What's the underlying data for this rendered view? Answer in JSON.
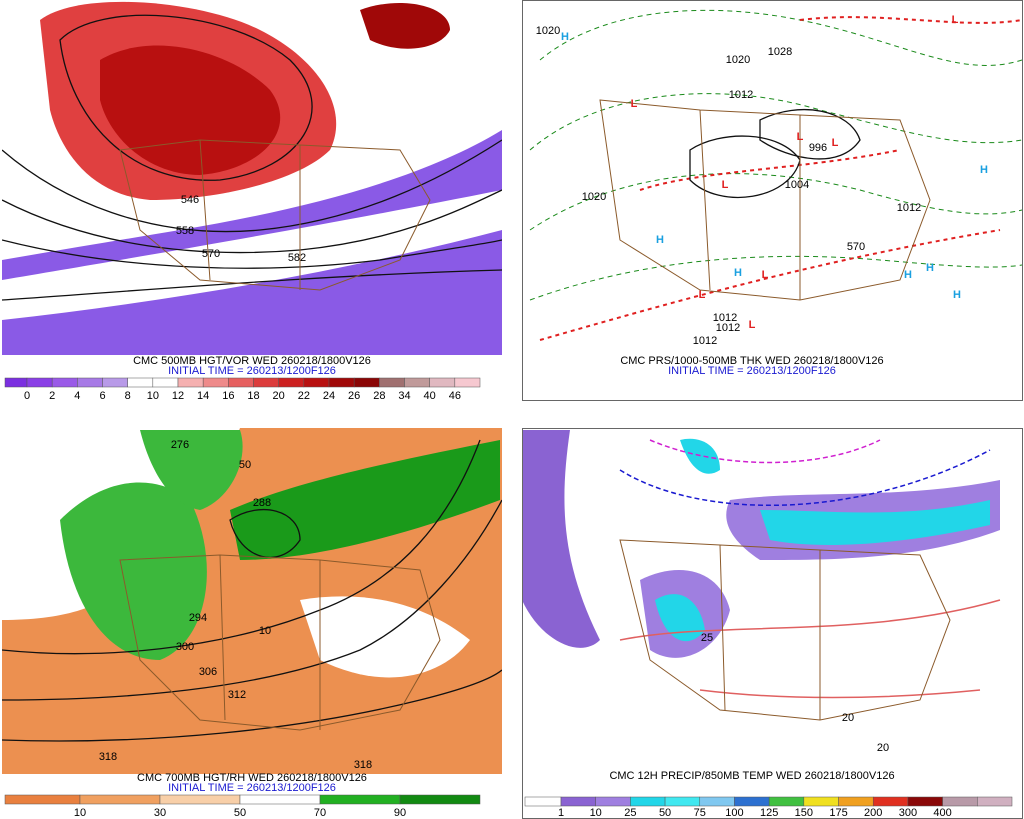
{
  "panels": [
    {
      "title": "CMC 500MB HGT/VOR WED 260218/1800V126",
      "init": "INITIAL TIME = 260213/1200F126",
      "legend": {
        "labels": [
          0,
          2,
          4,
          6,
          8,
          10,
          12,
          14,
          16,
          18,
          20,
          22,
          24,
          26,
          28,
          34,
          40,
          46
        ],
        "colors": [
          "#7b2fe0",
          "#8a3fe6",
          "#9a5ae8",
          "#a77ae6",
          "#b89ae8",
          "#ffffff",
          "#ffffff",
          "#f5b0b0",
          "#ee8a8a",
          "#e66060",
          "#dc3c3c",
          "#cc2020",
          "#b81010",
          "#a00808",
          "#8a0505",
          "#a07070",
          "#c09a9a",
          "#e0b8c0",
          "#f6c8d0"
        ]
      },
      "map_labels": [
        "546",
        "558",
        "570",
        "582"
      ]
    },
    {
      "title": "CMC PRS/1000-500MB THK WED 260218/1800V126",
      "init": "INITIAL TIME = 260213/1200F126",
      "map_labels": [
        "1020",
        "1028",
        "1020",
        "1012",
        "996",
        "1004",
        "1020",
        "1012",
        "570",
        "1012",
        "1012",
        "1012"
      ],
      "pressure_centers": [
        "H",
        "L",
        "L",
        "L",
        "L",
        "H",
        "H",
        "L",
        "L",
        "L",
        "H",
        "H",
        "H",
        "H",
        "L"
      ]
    },
    {
      "title": "CMC 700MB HGT/RH WED 260218/1800V126",
      "init": "INITIAL TIME = 260213/1200F126",
      "legend": {
        "labels": [
          10,
          30,
          50,
          70,
          90
        ],
        "colors": [
          "#e9803f",
          "#f0a060",
          "#f8cfa8",
          "#ffffff",
          "#22b022",
          "#128a12"
        ]
      },
      "map_labels": [
        "276",
        "288",
        "294",
        "300",
        "306",
        "312",
        "318",
        "318",
        "50",
        "10"
      ]
    },
    {
      "title": "CMC 12H PRECIP/850MB TEMP WED 260218/1800V126",
      "legend": {
        "labels": [
          1,
          10,
          25,
          50,
          75,
          100,
          125,
          150,
          175,
          200,
          300,
          400
        ],
        "colors": [
          "#ffffff",
          "#8a63d2",
          "#9f7fe0",
          "#22d6e8",
          "#40e8f0",
          "#80c8f0",
          "#2c70d0",
          "#40c040",
          "#f0e020",
          "#f0a020",
          "#e03020",
          "#8a0808",
          "#b89aa8",
          "#d0b0c0"
        ]
      },
      "map_labels": [
        "25",
        "20",
        "20"
      ]
    }
  ]
}
